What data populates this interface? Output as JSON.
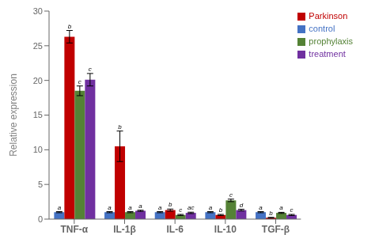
{
  "chart_data": {
    "type": "bar",
    "categories": [
      "TNF-α",
      "IL-1β",
      "IL-6",
      "IL-10",
      "TGF-β"
    ],
    "ylabel": "Relative expression",
    "ylim": [
      0,
      30
    ],
    "yticks": [
      0,
      5,
      10,
      15,
      20,
      25,
      30
    ],
    "grid": false,
    "legend": "upper right",
    "series": [
      {
        "name": "control",
        "color": "#4472c4",
        "values": [
          1.0,
          1.0,
          1.0,
          1.0,
          1.0
        ],
        "errors": [
          0.08,
          0.08,
          0.08,
          0.08,
          0.08
        ],
        "letters": [
          "a",
          "a",
          "a",
          "a",
          "a"
        ]
      },
      {
        "name": "Parkinson",
        "color": "#c00000",
        "values": [
          26.3,
          10.5,
          1.3,
          0.6,
          0.2
        ],
        "errors": [
          0.9,
          2.2,
          0.15,
          0.08,
          0.05
        ],
        "letters": [
          "b",
          "b",
          "b",
          "b",
          "b"
        ]
      },
      {
        "name": "prophylaxis",
        "color": "#548235",
        "values": [
          18.5,
          1.0,
          0.6,
          2.7,
          0.9
        ],
        "errors": [
          0.7,
          0.08,
          0.08,
          0.18,
          0.08
        ],
        "letters": [
          "c",
          "a",
          "c",
          "c",
          "a"
        ]
      },
      {
        "name": "treatment",
        "color": "#7030a0",
        "values": [
          20.1,
          1.2,
          0.9,
          1.3,
          0.6
        ],
        "errors": [
          0.9,
          0.08,
          0.1,
          0.12,
          0.08
        ],
        "letters": [
          "c",
          "a",
          "ac",
          "d",
          "c"
        ]
      }
    ]
  }
}
